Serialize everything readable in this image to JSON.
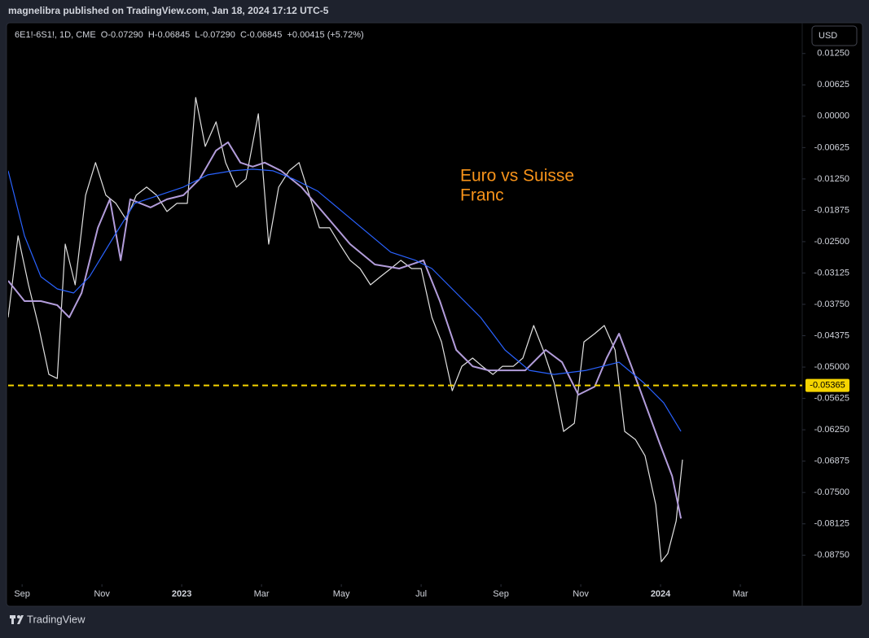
{
  "publisher_line": "magnelibra published on TradingView.com, Jan 18, 2024 17:12 UTC-5",
  "footer_brand": "TradingView",
  "currency_button": "USD",
  "chart_data": {
    "type": "line",
    "legend_text": "6E1!-6S1!, 1D, CME  O-0.07290  H-0.06845  L-0.07290  C-0.06845  +0.00415 (+5.72%)",
    "annotation": [
      "Euro vs Suisse",
      "Franc"
    ],
    "annotation_color": "#f7931a",
    "xlim": [
      -0.35,
      19.55
    ],
    "ylim": [
      -0.0933,
      0.0183
    ],
    "xticks": [
      {
        "value": 0,
        "label": "Sep"
      },
      {
        "value": 2,
        "label": "Nov"
      },
      {
        "value": 4,
        "label": "2023"
      },
      {
        "value": 6,
        "label": "Mar"
      },
      {
        "value": 8,
        "label": "May"
      },
      {
        "value": 10,
        "label": "Jul"
      },
      {
        "value": 12,
        "label": "Sep"
      },
      {
        "value": 14,
        "label": "Nov"
      },
      {
        "value": 16,
        "label": "2024"
      },
      {
        "value": 18,
        "label": "Mar"
      }
    ],
    "yticks": [
      {
        "value": 0.0125,
        "label": "0.01250"
      },
      {
        "value": 0.00625,
        "label": "0.00625"
      },
      {
        "value": 0,
        "label": "0.00000"
      },
      {
        "value": -0.00625,
        "label": "-0.00625"
      },
      {
        "value": -0.0125,
        "label": "-0.01250"
      },
      {
        "value": -0.01875,
        "label": "-0.01875"
      },
      {
        "value": -0.025,
        "label": "-0.02500"
      },
      {
        "value": -0.03125,
        "label": "-0.03125"
      },
      {
        "value": -0.0375,
        "label": "-0.03750"
      },
      {
        "value": -0.04375,
        "label": "-0.04375"
      },
      {
        "value": -0.05,
        "label": "-0.05000"
      },
      {
        "value": -0.05625,
        "label": "-0.05625"
      },
      {
        "value": -0.0625,
        "label": "-0.06250"
      },
      {
        "value": -0.06875,
        "label": "-0.06875"
      },
      {
        "value": -0.075,
        "label": "-0.07500"
      },
      {
        "value": -0.08125,
        "label": "-0.08125"
      },
      {
        "value": -0.0875,
        "label": "-0.08750"
      }
    ],
    "hline": {
      "value": -0.05365,
      "color": "#f5d400"
    },
    "series": [
      {
        "color": "#e0e0e0",
        "x": [
          -0.35,
          -0.1,
          0.16,
          0.41,
          0.67,
          0.88,
          1.08,
          1.33,
          1.59,
          1.84,
          2.1,
          2.35,
          2.61,
          2.86,
          3.12,
          3.37,
          3.63,
          3.88,
          4.14,
          4.35,
          4.59,
          4.86,
          5.1,
          5.37,
          5.61,
          5.92,
          6.18,
          6.43,
          6.69,
          6.94,
          7.2,
          7.45,
          7.71,
          7.96,
          8.22,
          8.47,
          8.73,
          8.98,
          9.24,
          9.49,
          9.76,
          10.0,
          10.27,
          10.51,
          10.78,
          11.02,
          11.29,
          11.53,
          11.8,
          12.04,
          12.31,
          12.55,
          12.82,
          13.06,
          13.33,
          13.57,
          13.84,
          14.08,
          14.35,
          14.59,
          14.86,
          15.1,
          15.37,
          15.61,
          15.88,
          16.02,
          16.18,
          16.39,
          16.55
        ],
        "values": [
          -0.0401,
          -0.02386,
          -0.0336,
          -0.04172,
          -0.05146,
          -0.05227,
          -0.02549,
          -0.0336,
          -0.01575,
          -0.00925,
          -0.01575,
          -0.01737,
          -0.02062,
          -0.01575,
          -0.01412,
          -0.01575,
          -0.01899,
          -0.01737,
          -0.01737,
          0.00373,
          -0.00601,
          -0.00114,
          -0.00925,
          -0.01412,
          -0.0125,
          0.00049,
          -0.02549,
          -0.01412,
          -0.01088,
          -0.00925,
          -0.01575,
          -0.02224,
          -0.02224,
          -0.02549,
          -0.02873,
          -0.03036,
          -0.0336,
          -0.03198,
          -0.03036,
          -0.02873,
          -0.03036,
          -0.03036,
          -0.0401,
          -0.04497,
          -0.05471,
          -0.04984,
          -0.04821,
          -0.04984,
          -0.05146,
          -0.04984,
          -0.04984,
          -0.04821,
          -0.04172,
          -0.04659,
          -0.05308,
          -0.06282,
          -0.0612,
          -0.04497,
          -0.04334,
          -0.04172,
          -0.04659,
          -0.06282,
          -0.06445,
          -0.06769,
          -0.07744,
          -0.0888,
          -0.08718,
          -0.08068,
          -0.06845
        ]
      },
      {
        "color": "#b39ddb",
        "x": [
          -0.35,
          0.06,
          0.47,
          0.88,
          1.18,
          1.49,
          1.9,
          2.2,
          2.47,
          2.71,
          3.22,
          3.63,
          4.04,
          4.45,
          4.86,
          5.16,
          5.47,
          5.78,
          6.08,
          6.49,
          7.0,
          7.61,
          8.22,
          8.84,
          9.45,
          10.06,
          10.47,
          10.88,
          11.29,
          11.69,
          12.1,
          12.61,
          13.12,
          13.53,
          13.94,
          14.35,
          14.65,
          14.96,
          15.27,
          15.57,
          15.98,
          16.29,
          16.51
        ],
        "values": [
          -0.03279,
          -0.03685,
          -0.03685,
          -0.03766,
          -0.0401,
          -0.03523,
          -0.02224,
          -0.01656,
          -0.02873,
          -0.01656,
          -0.01818,
          -0.01656,
          -0.01575,
          -0.0125,
          -0.00682,
          -0.00519,
          -0.00925,
          -0.01006,
          -0.00925,
          -0.01088,
          -0.01412,
          -0.01981,
          -0.02549,
          -0.02955,
          -0.03036,
          -0.02873,
          -0.03685,
          -0.04659,
          -0.04984,
          -0.05065,
          -0.05065,
          -0.05065,
          -0.04659,
          -0.04903,
          -0.05552,
          -0.0539,
          -0.04821,
          -0.04334,
          -0.04984,
          -0.05633,
          -0.06526,
          -0.07175,
          -0.08019
        ]
      },
      {
        "color": "#2962ff",
        "x": [
          -0.35,
          0.06,
          0.47,
          0.88,
          1.29,
          1.69,
          2.31,
          2.82,
          3.43,
          4.04,
          4.65,
          5.27,
          5.78,
          6.29,
          6.8,
          7.41,
          8.02,
          8.63,
          9.24,
          9.86,
          10.27,
          10.88,
          11.49,
          12.1,
          12.71,
          13.33,
          14.14,
          14.96,
          15.57,
          16.08,
          16.51
        ],
        "values": [
          -0.01088,
          -0.02386,
          -0.03198,
          -0.03442,
          -0.03523,
          -0.03198,
          -0.02386,
          -0.01737,
          -0.01575,
          -0.01412,
          -0.01169,
          -0.01088,
          -0.01055,
          -0.01088,
          -0.0125,
          -0.01494,
          -0.01899,
          -0.02305,
          -0.02711,
          -0.02873,
          -0.03036,
          -0.03523,
          -0.0401,
          -0.04659,
          -0.05065,
          -0.05146,
          -0.05065,
          -0.04903,
          -0.05308,
          -0.05714,
          -0.06282
        ]
      }
    ]
  }
}
